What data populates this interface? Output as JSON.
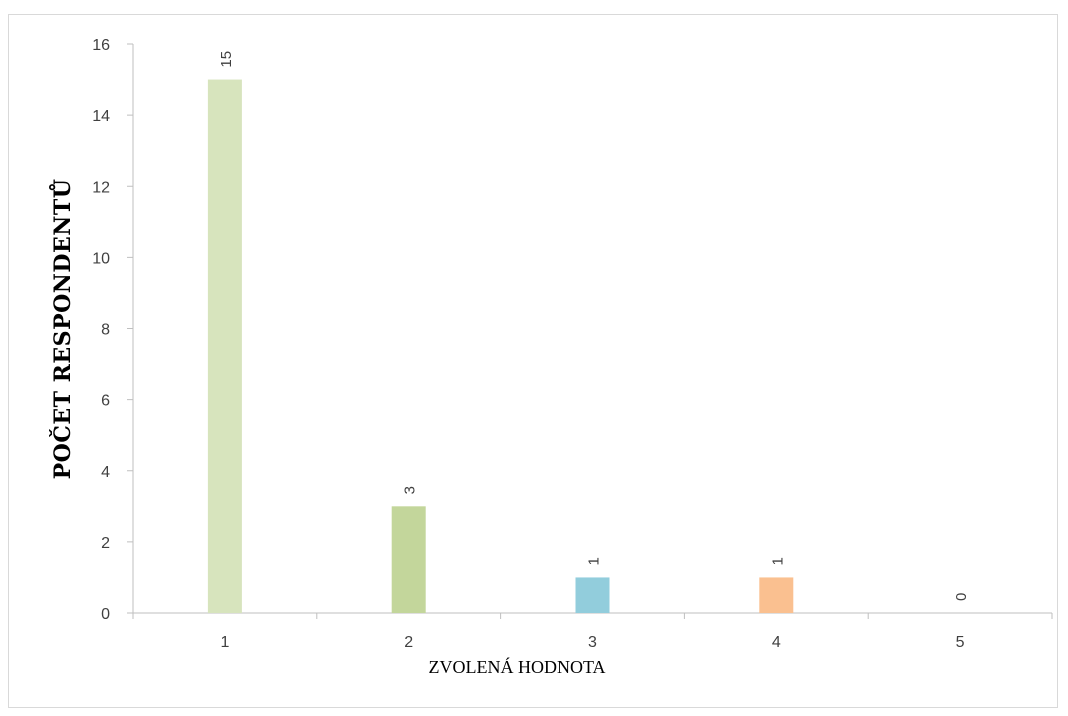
{
  "chart_data": {
    "type": "bar",
    "title": "",
    "xlabel": "ZVOLENÁ HODNOTA",
    "ylabel": "POČET RESPONDENTŮ",
    "categories": [
      "1",
      "2",
      "3",
      "4",
      "5"
    ],
    "values": [
      15,
      3,
      1,
      1,
      0
    ],
    "data_labels": [
      "15",
      "3",
      "1",
      "1",
      "0"
    ],
    "colors": [
      "#d7e4bd",
      "#c3d69b",
      "#92cddc",
      "#fac090",
      "#b3a2c7"
    ],
    "ylim": [
      0,
      16
    ],
    "yticks": [
      "0",
      "2",
      "4",
      "6",
      "8",
      "10",
      "12",
      "14",
      "16"
    ],
    "grid": false,
    "legend": "none"
  }
}
